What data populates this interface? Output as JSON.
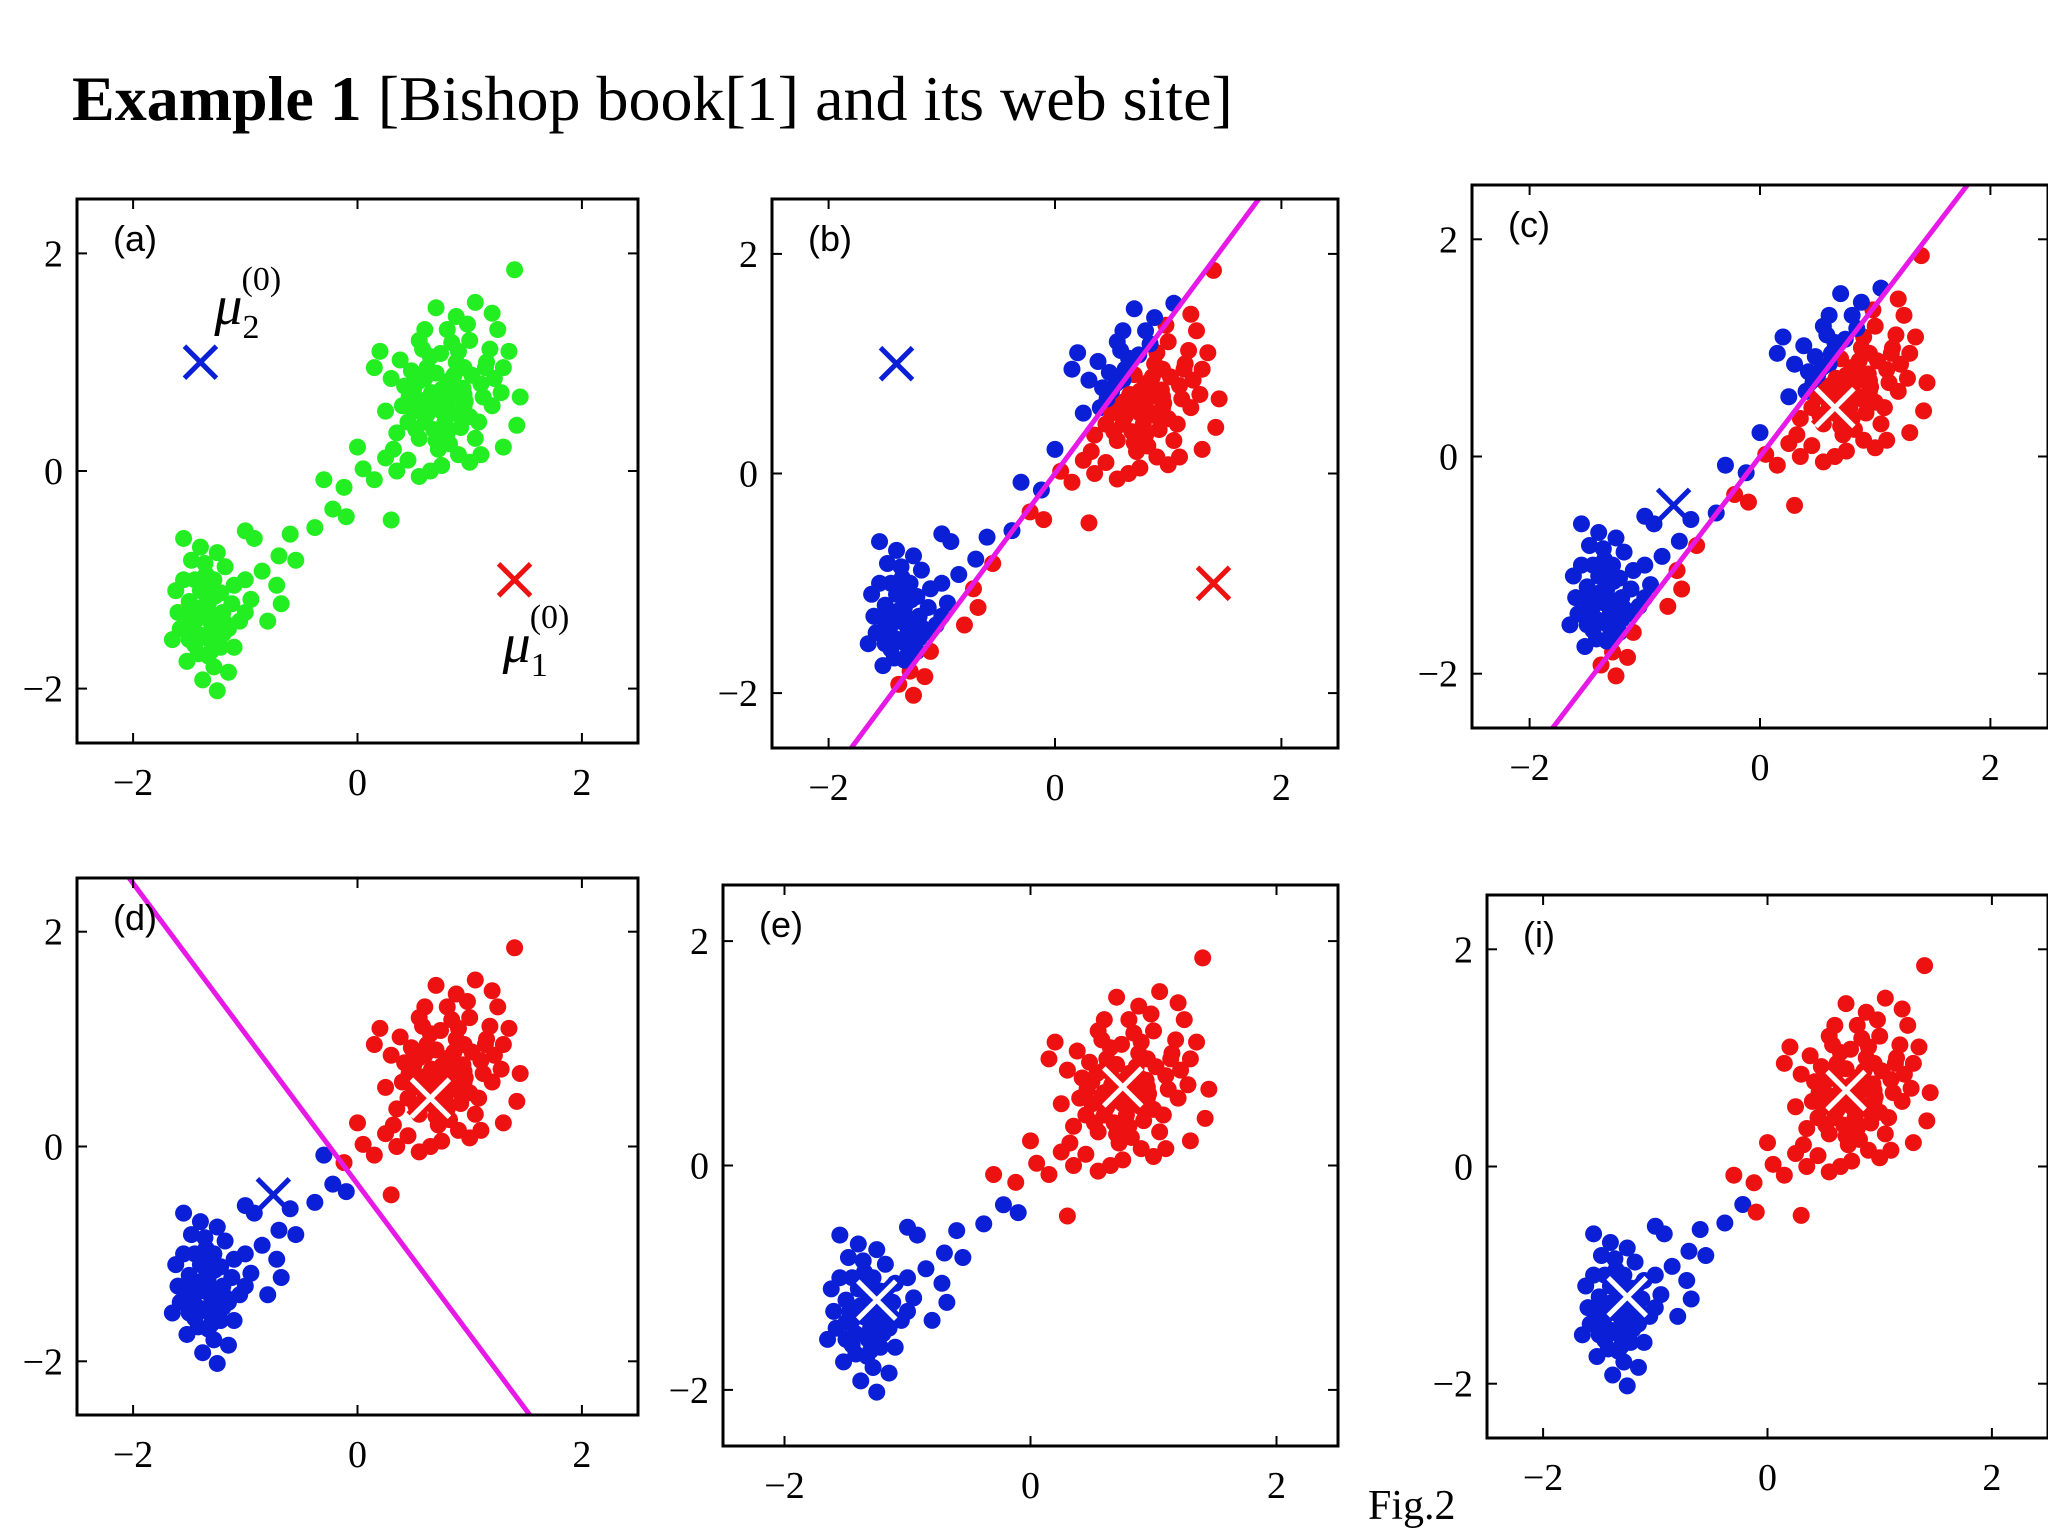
{
  "title": {
    "bold": "Example 1",
    "rest": " [Bishop book[1] and its web site]"
  },
  "caption": "Fig.2",
  "colors": {
    "green": "#22ee22",
    "blue": "#0a1fd6",
    "red": "#ee1111",
    "magenta": "#e619e6"
  },
  "chart_data": [
    {
      "type": "scatter",
      "panel": "(a)",
      "xlim": [
        -2.5,
        2.5
      ],
      "ylim": [
        -2.5,
        2.5
      ],
      "xticks": [
        -2,
        0,
        2
      ],
      "yticks": [
        -2,
        0,
        2
      ],
      "point_color": "green",
      "centroids": [
        {
          "name": "mu_2",
          "label_base": "μ",
          "label_sub": "2",
          "label_sup": "(0)",
          "x": -1.4,
          "y": 1.0,
          "color": "blue",
          "style": "plain"
        },
        {
          "name": "mu_1",
          "label_base": "μ",
          "label_sub": "1",
          "label_sup": "(0)",
          "x": 1.4,
          "y": -1.0,
          "color": "red",
          "style": "plain"
        }
      ],
      "boundary": null
    },
    {
      "type": "scatter",
      "panel": "(b)",
      "xlim": [
        -2.5,
        2.5
      ],
      "ylim": [
        -2.5,
        2.5
      ],
      "xticks": [
        -2,
        0,
        2
      ],
      "yticks": [
        -2,
        0,
        2
      ],
      "point_color": "by-side-of-boundary",
      "centroids": [
        {
          "name": "mu_2",
          "x": -1.4,
          "y": 1.0,
          "color": "blue",
          "style": "plain"
        },
        {
          "name": "mu_1",
          "x": 1.4,
          "y": -1.0,
          "color": "red",
          "style": "plain"
        }
      ],
      "boundary": {
        "a": 1.0,
        "b": -0.72,
        "c": 0.0
      }
    },
    {
      "type": "scatter",
      "panel": "(c)",
      "xlim": [
        -2.5,
        2.5
      ],
      "ylim": [
        -2.5,
        2.5
      ],
      "xticks": [
        -2,
        0,
        2
      ],
      "yticks": [
        -2,
        0,
        2
      ],
      "point_color": "by-side-of-boundary",
      "centroids": [
        {
          "name": "mu_2",
          "x": -0.75,
          "y": -0.45,
          "color": "blue",
          "style": "plain"
        },
        {
          "name": "mu_1",
          "x": 0.65,
          "y": 0.45,
          "color": "red",
          "style": "outlined"
        }
      ],
      "boundary": {
        "a": 1.0,
        "b": -0.72,
        "c": 0.0
      }
    },
    {
      "type": "scatter",
      "panel": "(d)",
      "xlim": [
        -2.5,
        2.5
      ],
      "ylim": [
        -2.5,
        2.5
      ],
      "xticks": [
        -2,
        0,
        2
      ],
      "yticks": [
        -2,
        0,
        2
      ],
      "point_color": "by-side-of-boundary",
      "centroids": [
        {
          "name": "mu_2",
          "x": -0.75,
          "y": -0.45,
          "color": "blue",
          "style": "plain"
        },
        {
          "name": "mu_1",
          "x": 0.65,
          "y": 0.45,
          "color": "red",
          "style": "outlined"
        }
      ],
      "boundary": {
        "a": 1.4,
        "b": 1.0,
        "c": 0.35
      }
    },
    {
      "type": "scatter",
      "panel": "(e)",
      "xlim": [
        -2.5,
        2.5
      ],
      "ylim": [
        -2.5,
        2.5
      ],
      "xticks": [
        -2,
        0,
        2
      ],
      "yticks": [
        -2,
        0,
        2
      ],
      "point_color": "by-nearest-centroid",
      "centroids": [
        {
          "name": "mu_2",
          "x": -1.25,
          "y": -1.2,
          "color": "blue",
          "style": "outlined"
        },
        {
          "name": "mu_1",
          "x": 0.75,
          "y": 0.7,
          "color": "red",
          "style": "outlined"
        }
      ],
      "boundary": null
    },
    {
      "type": "scatter",
      "panel": "(i)",
      "xlim": [
        -2.5,
        2.5
      ],
      "ylim": [
        -2.5,
        2.5
      ],
      "xticks": [
        -2,
        0,
        2
      ],
      "yticks": [
        -2,
        0,
        2
      ],
      "point_color": "by-nearest-centroid",
      "centroids": [
        {
          "name": "mu_2",
          "x": -1.25,
          "y": -1.2,
          "color": "blue",
          "style": "outlined"
        },
        {
          "name": "mu_1",
          "x": 0.7,
          "y": 0.7,
          "color": "red",
          "style": "outlined"
        }
      ],
      "boundary": null
    }
  ],
  "points": [
    [
      -1.45,
      -1.38
    ],
    [
      -1.32,
      -1.55
    ],
    [
      -1.22,
      -1.12
    ],
    [
      -1.5,
      -1.2
    ],
    [
      -1.28,
      -1.8
    ],
    [
      -1.35,
      -0.95
    ],
    [
      -1.58,
      -1.45
    ],
    [
      -1.15,
      -1.45
    ],
    [
      -1.42,
      -1.68
    ],
    [
      -1.26,
      -1.33
    ],
    [
      -1.36,
      -1.05
    ],
    [
      -1.12,
      -1.22
    ],
    [
      -1.48,
      -0.82
    ],
    [
      -1.22,
      -1.62
    ],
    [
      -1.62,
      -1.1
    ],
    [
      -1.38,
      -1.92
    ],
    [
      -1.05,
      -1.38
    ],
    [
      -1.33,
      -1.22
    ],
    [
      -1.55,
      -0.62
    ],
    [
      -1.18,
      -0.88
    ],
    [
      -1.5,
      -1.55
    ],
    [
      -1.3,
      -1.45
    ],
    [
      -1.4,
      -1.1
    ],
    [
      -1.2,
      -1.3
    ],
    [
      -1.45,
      -1.6
    ],
    [
      -1.6,
      -1.3
    ],
    [
      -1.0,
      -1.0
    ],
    [
      -1.25,
      -2.02
    ],
    [
      -1.4,
      -0.7
    ],
    [
      -1.1,
      -1.62
    ],
    [
      -1.35,
      -1.35
    ],
    [
      -1.28,
      -1.0
    ],
    [
      -1.52,
      -1.75
    ],
    [
      -1.15,
      -1.85
    ],
    [
      -1.45,
      -1.0
    ],
    [
      -1.2,
      -1.5
    ],
    [
      -1.38,
      -1.25
    ],
    [
      -1.5,
      -1.4
    ],
    [
      -1.65,
      -1.55
    ],
    [
      -1.3,
      -1.65
    ],
    [
      -1.1,
      -1.05
    ],
    [
      -1.25,
      -0.75
    ],
    [
      -1.42,
      -1.5
    ],
    [
      -1.33,
      -1.7
    ],
    [
      -1.55,
      -1.0
    ],
    [
      -1.18,
      -1.4
    ],
    [
      -1.0,
      -1.3
    ],
    [
      -1.27,
      -1.15
    ],
    [
      -1.47,
      -1.3
    ],
    [
      -1.36,
      -0.85
    ],
    [
      -0.95,
      -1.18
    ],
    [
      -0.85,
      -0.92
    ],
    [
      -0.7,
      -0.78
    ],
    [
      -0.8,
      -1.38
    ],
    [
      -0.6,
      -0.58
    ],
    [
      -0.92,
      -0.62
    ],
    [
      -0.72,
      -1.05
    ],
    [
      -0.55,
      -0.82
    ],
    [
      -1.0,
      -0.55
    ],
    [
      -0.68,
      -1.22
    ],
    [
      -0.38,
      -0.52
    ],
    [
      -0.22,
      -0.35
    ],
    [
      -0.12,
      -0.15
    ],
    [
      0.05,
      0.02
    ],
    [
      -0.1,
      -0.42
    ],
    [
      0.15,
      -0.08
    ],
    [
      -0.3,
      -0.08
    ],
    [
      0.25,
      0.12
    ],
    [
      0.3,
      -0.45
    ],
    [
      0.0,
      0.22
    ],
    [
      0.45,
      0.45
    ],
    [
      0.6,
      0.65
    ],
    [
      0.75,
      0.55
    ],
    [
      0.85,
      0.8
    ],
    [
      0.95,
      0.7
    ],
    [
      0.7,
      0.9
    ],
    [
      0.55,
      0.3
    ],
    [
      0.8,
      0.35
    ],
    [
      1.0,
      0.5
    ],
    [
      0.65,
      1.05
    ],
    [
      0.9,
      1.1
    ],
    [
      1.1,
      0.8
    ],
    [
      0.5,
      0.75
    ],
    [
      0.72,
      0.2
    ],
    [
      1.05,
      0.3
    ],
    [
      0.4,
      0.6
    ],
    [
      0.85,
      0.55
    ],
    [
      0.6,
      0.45
    ],
    [
      0.75,
      0.75
    ],
    [
      0.95,
      0.95
    ],
    [
      1.15,
      1.0
    ],
    [
      0.3,
      0.85
    ],
    [
      0.55,
      1.2
    ],
    [
      0.8,
      1.3
    ],
    [
      1.0,
      1.2
    ],
    [
      1.2,
      0.6
    ],
    [
      0.45,
      0.1
    ],
    [
      0.65,
      0.0
    ],
    [
      0.9,
      0.15
    ],
    [
      1.1,
      0.15
    ],
    [
      0.35,
      0.35
    ],
    [
      0.7,
      0.65
    ],
    [
      0.85,
      0.7
    ],
    [
      0.6,
      0.85
    ],
    [
      0.95,
      0.6
    ],
    [
      0.5,
      0.55
    ],
    [
      0.78,
      0.45
    ],
    [
      1.02,
      0.88
    ],
    [
      0.68,
      0.38
    ],
    [
      0.88,
      1.0
    ],
    [
      1.25,
      1.3
    ],
    [
      1.3,
      0.95
    ],
    [
      1.42,
      0.42
    ],
    [
      1.3,
      0.22
    ],
    [
      1.4,
      1.85
    ],
    [
      1.05,
      1.55
    ],
    [
      0.7,
      1.5
    ],
    [
      0.2,
      1.1
    ],
    [
      0.35,
      0.0
    ],
    [
      0.55,
      -0.05
    ],
    [
      0.62,
      0.95
    ],
    [
      0.92,
      0.4
    ],
    [
      0.48,
      0.92
    ],
    [
      1.12,
      0.68
    ],
    [
      0.82,
      0.25
    ],
    [
      0.58,
      0.62
    ],
    [
      0.74,
      1.08
    ],
    [
      1.18,
      1.12
    ],
    [
      0.25,
      0.55
    ],
    [
      0.42,
      0.78
    ],
    [
      0.98,
      1.35
    ],
    [
      1.22,
      0.85
    ],
    [
      0.66,
      0.72
    ],
    [
      0.86,
      0.88
    ],
    [
      0.52,
      0.38
    ],
    [
      1.08,
      0.45
    ],
    [
      0.76,
      0.62
    ],
    [
      0.94,
      0.76
    ],
    [
      0.62,
      0.52
    ],
    [
      0.84,
      1.18
    ],
    [
      0.38,
      1.02
    ],
    [
      1.28,
      0.72
    ],
    [
      0.7,
      0.28
    ],
    [
      1.0,
      0.08
    ],
    [
      0.46,
      0.68
    ],
    [
      0.9,
      0.52
    ],
    [
      0.58,
      1.12
    ],
    [
      1.14,
      0.95
    ],
    [
      0.8,
      0.82
    ],
    [
      0.68,
      0.58
    ],
    [
      0.96,
      0.64
    ],
    [
      0.54,
      0.82
    ],
    [
      1.2,
      1.45
    ],
    [
      0.88,
      1.42
    ],
    [
      0.32,
      0.2
    ],
    [
      0.6,
      1.3
    ],
    [
      1.35,
      1.1
    ],
    [
      0.75,
      0.05
    ],
    [
      0.15,
      0.95
    ],
    [
      1.45,
      0.68
    ]
  ]
}
